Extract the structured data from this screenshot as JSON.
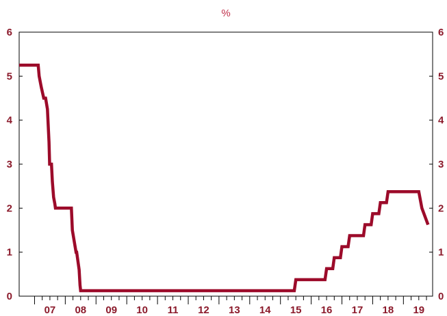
{
  "colors": {
    "line": "#9c0b2a",
    "axis_text": "#8b1a2b",
    "unit_text": "#c0304a",
    "frame": "#000000"
  },
  "chart_data": {
    "type": "line",
    "unit_label": "%",
    "x_tick_labels": [
      "07",
      "08",
      "09",
      "10",
      "11",
      "12",
      "13",
      "14",
      "15",
      "16",
      "17",
      "18",
      "19"
    ],
    "y_tick_labels": [
      "0",
      "1",
      "2",
      "3",
      "4",
      "5",
      "6"
    ],
    "xlim": [
      2006.5,
      2019.95
    ],
    "ylim": [
      0,
      6
    ],
    "grid": false,
    "series": [
      {
        "x": [
          2006.5,
          2007.12,
          2007.15,
          2007.22,
          2007.3,
          2007.36,
          2007.42,
          2007.47,
          2007.49,
          2007.55,
          2007.58,
          2007.62,
          2007.66,
          2007.68,
          2007.72,
          2007.75,
          2008.2,
          2008.23,
          2008.35,
          2008.37,
          2008.45,
          2008.48,
          2008.5,
          2015.45,
          2015.5,
          2016.45,
          2016.5,
          2016.7,
          2016.75,
          2016.95,
          2017.0,
          2017.2,
          2017.25,
          2017.7,
          2017.75,
          2017.95,
          2018.0,
          2018.2,
          2018.25,
          2018.45,
          2018.5,
          2018.7,
          2018.75,
          2018.95,
          2019.0,
          2019.5,
          2019.6,
          2019.8
        ],
        "y": [
          5.25,
          5.25,
          5.0,
          4.75,
          4.5,
          4.5,
          4.25,
          3.5,
          3.0,
          3.0,
          2.6,
          2.25,
          2.1,
          2.0,
          2.0,
          2.0,
          2.0,
          1.5,
          1.0,
          1.0,
          0.6,
          0.25,
          0.125,
          0.125,
          0.375,
          0.375,
          0.625,
          0.625,
          0.875,
          0.875,
          1.125,
          1.125,
          1.375,
          1.375,
          1.625,
          1.625,
          1.875,
          1.875,
          2.125,
          2.125,
          2.375,
          2.375,
          2.375,
          2.375,
          2.375,
          2.375,
          2.0,
          1.625
        ]
      }
    ]
  }
}
